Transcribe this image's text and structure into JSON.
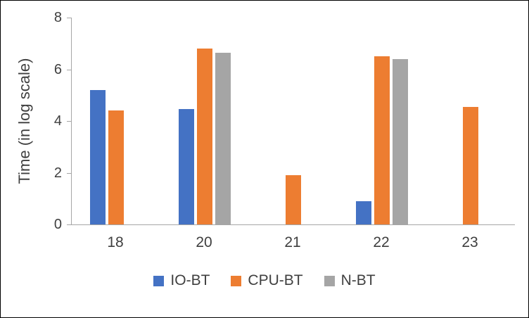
{
  "chart_data": {
    "type": "bar",
    "title": "",
    "categories": [
      "18",
      "20",
      "21",
      "22",
      "23"
    ],
    "series": [
      {
        "name": "IO-BT",
        "color": "#4472C4",
        "values": [
          5.2,
          4.45,
          0,
          0.9,
          0
        ]
      },
      {
        "name": "CPU-BT",
        "color": "#ED7D31",
        "values": [
          4.4,
          6.8,
          1.9,
          6.5,
          4.55
        ]
      },
      {
        "name": "N-BT",
        "color": "#A5A5A5",
        "values": [
          0,
          6.65,
          0,
          6.4,
          0
        ]
      }
    ],
    "xlabel": "",
    "ylabel": "Time (in log scale)",
    "ylim": [
      0,
      8
    ],
    "yticks": [
      0,
      2,
      4,
      6,
      8
    ],
    "grid": false,
    "legend_position": "bottom"
  },
  "axis": {
    "line_color": "#A6A6A6",
    "text_color": "#3F3F3F"
  },
  "frame": {
    "border_color": "#000000",
    "background": "#FFFFFF"
  }
}
